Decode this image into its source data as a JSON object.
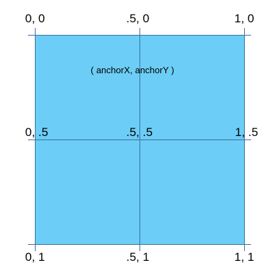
{
  "colors": {
    "fill": "#6ccdf6",
    "line": "#3b6e9e",
    "text": "#000000"
  },
  "caption": "( anchorX, anchorY )",
  "corner_labels": {
    "top_left": "0, 0",
    "top_center": ".5, 0",
    "top_right": "1, 0",
    "mid_left": "0, .5",
    "mid_center": ".5, .5",
    "mid_right": "1, .5",
    "bottom_left": "0, 1",
    "bottom_center": ".5, 1",
    "bottom_right": "1, 1"
  }
}
